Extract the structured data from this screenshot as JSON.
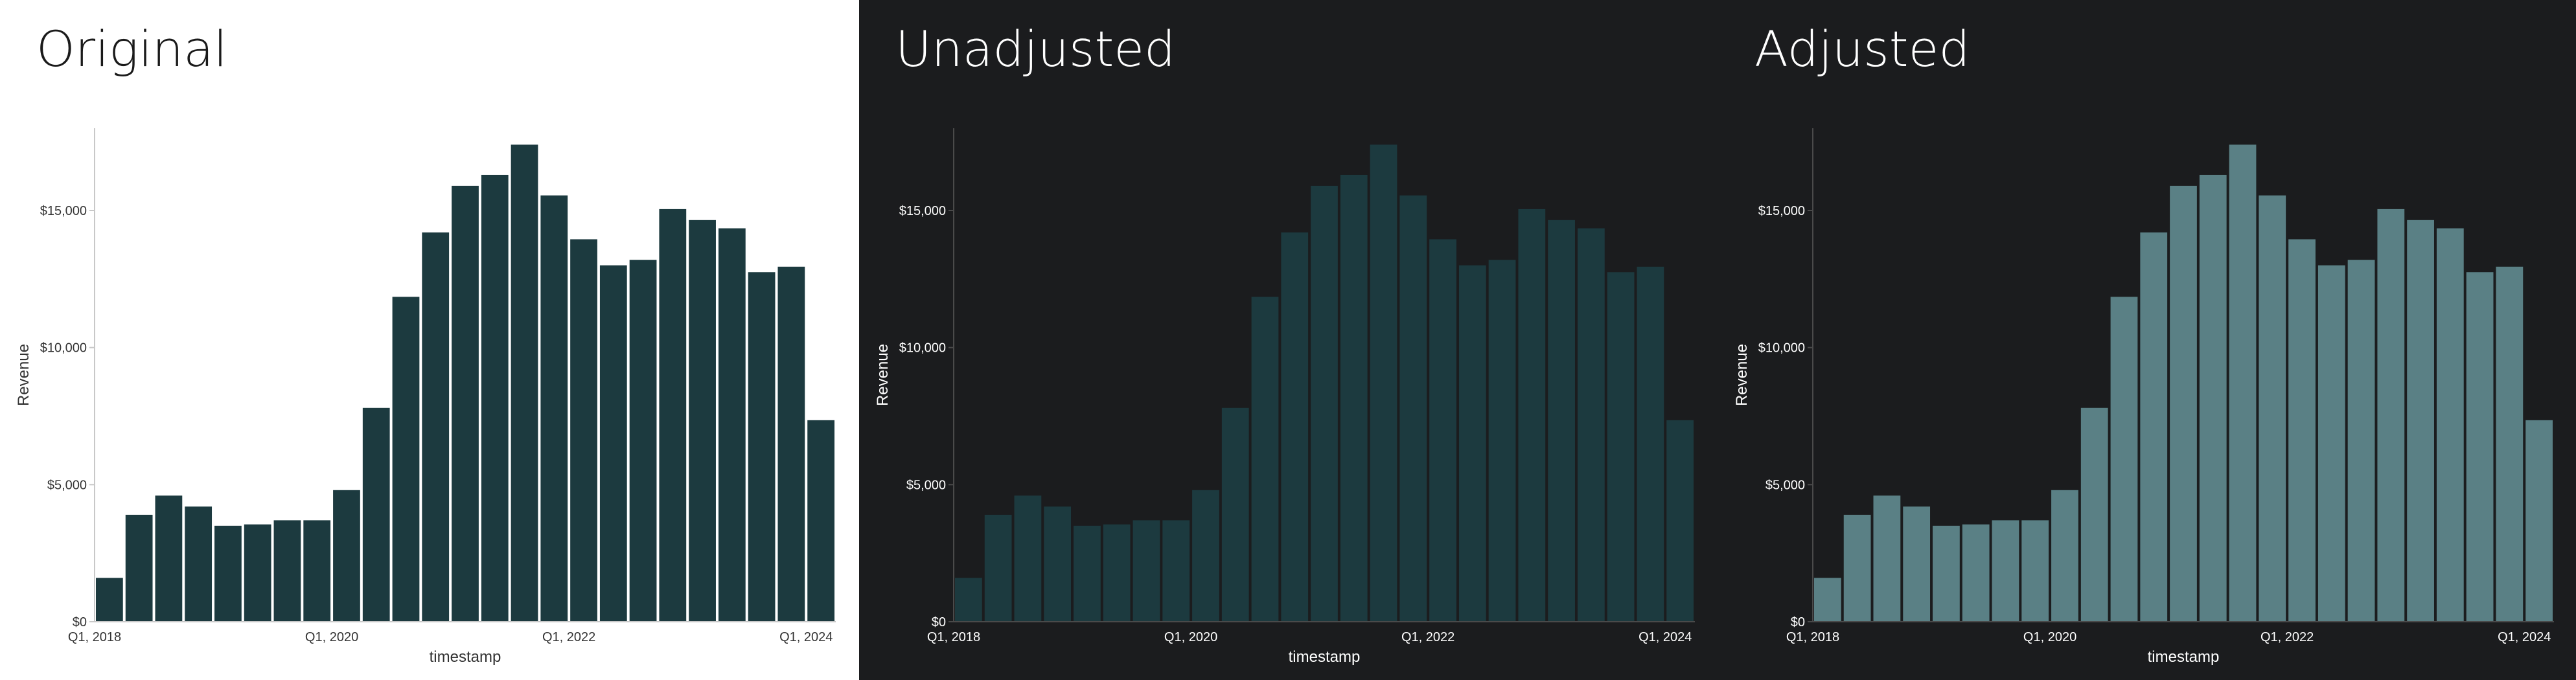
{
  "panels": [
    {
      "title": "Original",
      "theme": "light",
      "bar_color": "#1c3a3f",
      "text_color": "#333333",
      "axis_color": "#c8c8c8"
    },
    {
      "title": "Unadjusted",
      "theme": "dark",
      "bar_color": "#1c3a3f",
      "text_color": "#ffffff",
      "axis_color": "#4a4a4a"
    },
    {
      "title": "Adjusted",
      "theme": "dark",
      "bar_color": "#5a8085",
      "text_color": "#ffffff",
      "axis_color": "#4a4a4a"
    }
  ],
  "chart_data": {
    "type": "bar",
    "xlabel": "timestamp",
    "ylabel": "Revenue",
    "ylim": [
      0,
      18000
    ],
    "yticks": [
      0,
      5000,
      10000,
      15000
    ],
    "ytick_labels": [
      "$0",
      "$5,000",
      "$10,000",
      "$15,000"
    ],
    "xtick_labels": [
      {
        "label": "Q1, 2018",
        "index": 0
      },
      {
        "label": "Q1, 2020",
        "index": 8
      },
      {
        "label": "Q1, 2022",
        "index": 16
      },
      {
        "label": "Q1, 2024",
        "index": 24
      }
    ],
    "values": [
      1600,
      3900,
      4600,
      4200,
      3500,
      3550,
      3700,
      3700,
      4800,
      7800,
      11850,
      14200,
      15900,
      16300,
      17400,
      15550,
      13950,
      13000,
      13200,
      15050,
      14650,
      14350,
      12750,
      12950,
      7350
    ],
    "grid": false
  }
}
